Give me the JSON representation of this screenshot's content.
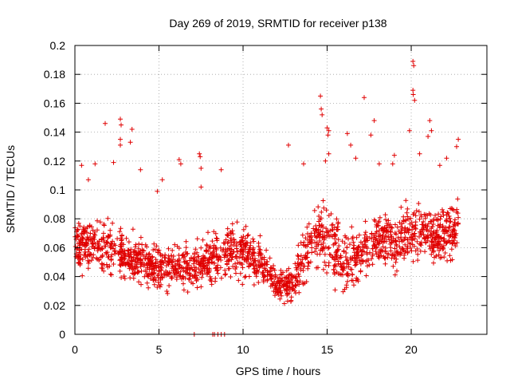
{
  "chart_data": {
    "type": "scatter",
    "title": "Day 269 of 2019, SRMTID for receiver p138",
    "xlabel": "GPS time / hours",
    "ylabel": "SRMTID / TECUs",
    "xlim": [
      0,
      24.5
    ],
    "ylim": [
      0,
      0.2
    ],
    "xticks": [
      0,
      5,
      10,
      15,
      20
    ],
    "xtick_labels": [
      "0",
      "5",
      "10",
      "15",
      "20"
    ],
    "yticks": [
      0,
      0.02,
      0.04,
      0.06,
      0.08,
      0.1,
      0.12,
      0.14,
      0.16,
      0.18,
      0.2
    ],
    "ytick_labels": [
      "0",
      "0.02",
      "0.04",
      "0.06",
      "0.08",
      "0.1",
      "0.12",
      "0.14",
      "0.16",
      "0.18",
      "0.2"
    ],
    "grid": true,
    "marker": "+",
    "colors": {
      "points": "#e00000",
      "grid": "#a0a0a0",
      "axes": "#000000"
    },
    "profile": {
      "x": [
        0,
        1,
        2,
        3,
        4,
        5,
        6,
        7,
        8,
        9,
        10,
        11,
        12,
        13,
        14,
        15,
        16,
        17,
        18,
        19,
        20,
        21,
        22,
        22.8
      ],
      "mean": [
        0.063,
        0.061,
        0.058,
        0.055,
        0.05,
        0.045,
        0.047,
        0.046,
        0.052,
        0.058,
        0.058,
        0.052,
        0.034,
        0.035,
        0.068,
        0.068,
        0.05,
        0.058,
        0.068,
        0.061,
        0.072,
        0.07,
        0.068,
        0.075
      ],
      "spread": [
        0.013,
        0.014,
        0.014,
        0.013,
        0.012,
        0.011,
        0.012,
        0.012,
        0.013,
        0.014,
        0.014,
        0.012,
        0.008,
        0.01,
        0.017,
        0.02,
        0.016,
        0.016,
        0.015,
        0.014,
        0.017,
        0.017,
        0.016,
        0.016
      ]
    },
    "outliers": [
      [
        0.4,
        0.117
      ],
      [
        0.8,
        0.107
      ],
      [
        1.2,
        0.118
      ],
      [
        1.8,
        0.146
      ],
      [
        2.7,
        0.149
      ],
      [
        2.75,
        0.145
      ],
      [
        2.7,
        0.135
      ],
      [
        2.7,
        0.131
      ],
      [
        3.3,
        0.133
      ],
      [
        3.4,
        0.142
      ],
      [
        3.9,
        0.114
      ],
      [
        5.2,
        0.107
      ],
      [
        6.2,
        0.121
      ],
      [
        6.3,
        0.118
      ],
      [
        7.4,
        0.125
      ],
      [
        7.45,
        0.123
      ],
      [
        7.5,
        0.115
      ],
      [
        8.7,
        0.114
      ],
      [
        7.5,
        0.102
      ],
      [
        12.7,
        0.131
      ],
      [
        14.6,
        0.165
      ],
      [
        14.65,
        0.156
      ],
      [
        14.7,
        0.152
      ],
      [
        15.0,
        0.143
      ],
      [
        15.1,
        0.141
      ],
      [
        15.05,
        0.138
      ],
      [
        14.9,
        0.12
      ],
      [
        15.1,
        0.125
      ],
      [
        17.2,
        0.164
      ],
      [
        17.8,
        0.148
      ],
      [
        18.1,
        0.118
      ],
      [
        20.1,
        0.189
      ],
      [
        20.15,
        0.186
      ],
      [
        20.1,
        0.169
      ],
      [
        20.12,
        0.166
      ],
      [
        20.2,
        0.162
      ],
      [
        19.9,
        0.141
      ],
      [
        21.1,
        0.148
      ],
      [
        21.2,
        0.141
      ],
      [
        21.0,
        0.137
      ],
      [
        22.8,
        0.135
      ],
      [
        22.7,
        0.13
      ],
      [
        22.1,
        0.122
      ],
      [
        20.5,
        0.125
      ],
      [
        16.2,
        0.139
      ],
      [
        16.4,
        0.131
      ],
      [
        19.0,
        0.124
      ],
      [
        18.9,
        0.118
      ],
      [
        21.7,
        0.117
      ],
      [
        13.6,
        0.118
      ],
      [
        17.6,
        0.138
      ],
      [
        16.7,
        0.122
      ],
      [
        2.3,
        0.119
      ],
      [
        4.9,
        0.099
      ]
    ],
    "zeros": [
      7.1,
      8.2,
      8.3,
      8.5,
      8.7,
      8.9
    ]
  }
}
